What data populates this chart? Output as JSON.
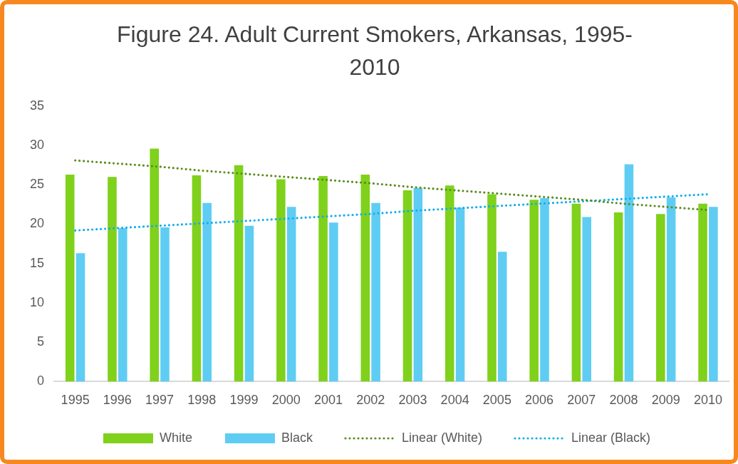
{
  "chart_data": {
    "type": "bar",
    "title": "Figure 24. Adult Current Smokers, Arkansas, 1995-2010",
    "categories": [
      "1995",
      "1996",
      "1997",
      "1998",
      "1999",
      "2000",
      "2001",
      "2002",
      "2003",
      "2004",
      "2005",
      "2006",
      "2007",
      "2008",
      "2009",
      "2010"
    ],
    "series": [
      {
        "name": "White",
        "color": "#7fd11b",
        "values": [
          26.3,
          26.0,
          29.6,
          26.2,
          27.5,
          25.7,
          26.1,
          26.3,
          24.3,
          24.9,
          23.8,
          23.1,
          22.6,
          21.5,
          21.3,
          22.6
        ]
      },
      {
        "name": "Black",
        "color": "#5fcdf3",
        "values": [
          16.3,
          19.5,
          19.6,
          22.7,
          19.8,
          22.2,
          20.2,
          22.7,
          24.6,
          22.1,
          16.5,
          23.3,
          20.9,
          27.6,
          23.4,
          22.2
        ]
      },
      {
        "name": "Linear (White)",
        "type": "line",
        "color": "#5a8c1e",
        "line_style": "dotted",
        "marker": "none",
        "values": [
          28.1,
          27.7,
          27.3,
          26.8,
          26.4,
          26.0,
          25.6,
          25.2,
          24.7,
          24.3,
          23.9,
          23.5,
          23.1,
          22.6,
          22.2,
          21.8
        ]
      },
      {
        "name": "Linear (Black)",
        "type": "line",
        "color": "#12aee8",
        "line_style": "dotted",
        "marker": "none",
        "values": [
          19.2,
          19.5,
          19.8,
          20.1,
          20.4,
          20.7,
          21.0,
          21.3,
          21.7,
          22.0,
          22.3,
          22.6,
          22.9,
          23.2,
          23.5,
          23.8
        ]
      }
    ],
    "ylim": [
      0,
      35
    ],
    "yticks": [
      0,
      5,
      10,
      15,
      20,
      25,
      30,
      35
    ],
    "legend": "bottom"
  }
}
